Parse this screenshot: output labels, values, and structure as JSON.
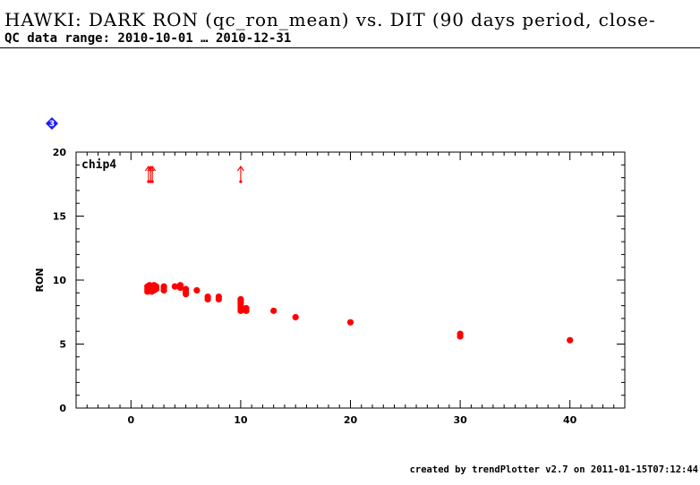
{
  "header": {
    "title": "HAWKI: DARK RON (qc_ron_mean) vs. DIT (90 days period, close-",
    "subtitle": "QC data range: 2010-10-01 … 2010-12-31"
  },
  "footer": {
    "text": "created by trendPlotter v2.7 on 2011-01-15T07:12:44"
  },
  "panel": {
    "badge_number": "3",
    "badge_icon": "diamond-number-icon",
    "badge_color": "#1a1aff",
    "label": "chip4"
  },
  "chart_data": {
    "type": "scatter",
    "xlabel": "",
    "ylabel": "RON",
    "xlim": [
      -5,
      45
    ],
    "ylim": [
      0,
      20
    ],
    "x_ticks": [
      0,
      10,
      20,
      30,
      40
    ],
    "x_tick_labels": [
      "0",
      "10",
      "20",
      "30",
      "40"
    ],
    "y_ticks": [
      0,
      5,
      10,
      15,
      20
    ],
    "y_tick_labels": [
      "0",
      "5",
      "10",
      "15",
      "20"
    ],
    "grid": false,
    "point_color": "#ff0000",
    "series": [
      {
        "points": [
          {
            "x": 1.5,
            "y": 9.1
          },
          {
            "x": 1.5,
            "y": 9.3
          },
          {
            "x": 1.5,
            "y": 9.5
          },
          {
            "x": 1.7,
            "y": 9.2
          },
          {
            "x": 1.7,
            "y": 9.4
          },
          {
            "x": 1.7,
            "y": 9.6
          },
          {
            "x": 1.9,
            "y": 9.1
          },
          {
            "x": 1.9,
            "y": 9.3
          },
          {
            "x": 1.9,
            "y": 9.5
          },
          {
            "x": 2.1,
            "y": 9.2
          },
          {
            "x": 2.1,
            "y": 9.4
          },
          {
            "x": 2.1,
            "y": 9.6
          },
          {
            "x": 2.3,
            "y": 9.3
          },
          {
            "x": 2.3,
            "y": 9.5
          },
          {
            "x": 3.0,
            "y": 9.2
          },
          {
            "x": 3.0,
            "y": 9.4
          },
          {
            "x": 3.0,
            "y": 9.5
          },
          {
            "x": 4.0,
            "y": 9.5
          },
          {
            "x": 4.5,
            "y": 9.6
          },
          {
            "x": 4.5,
            "y": 9.4
          },
          {
            "x": 5.0,
            "y": 8.9
          },
          {
            "x": 5.0,
            "y": 9.1
          },
          {
            "x": 5.0,
            "y": 9.3
          },
          {
            "x": 6.0,
            "y": 9.2
          },
          {
            "x": 7.0,
            "y": 8.5
          },
          {
            "x": 7.0,
            "y": 8.7
          },
          {
            "x": 8.0,
            "y": 8.5
          },
          {
            "x": 8.0,
            "y": 8.7
          },
          {
            "x": 10.0,
            "y": 7.6
          },
          {
            "x": 10.0,
            "y": 7.8
          },
          {
            "x": 10.0,
            "y": 8.0
          },
          {
            "x": 10.0,
            "y": 8.2
          },
          {
            "x": 10.0,
            "y": 8.4
          },
          {
            "x": 10.0,
            "y": 8.5
          },
          {
            "x": 10.5,
            "y": 7.6
          },
          {
            "x": 10.5,
            "y": 7.8
          },
          {
            "x": 13.0,
            "y": 7.6
          },
          {
            "x": 15.0,
            "y": 7.1
          },
          {
            "x": 20.0,
            "y": 6.7
          },
          {
            "x": 30.0,
            "y": 5.6
          },
          {
            "x": 30.0,
            "y": 5.8
          },
          {
            "x": 40.0,
            "y": 5.3
          }
        ]
      }
    ],
    "off_scale_markers": [
      {
        "x": 1.6,
        "direction": "up"
      },
      {
        "x": 1.8,
        "direction": "up"
      },
      {
        "x": 1.95,
        "direction": "up"
      },
      {
        "x": 10.0,
        "direction": "up"
      }
    ]
  }
}
